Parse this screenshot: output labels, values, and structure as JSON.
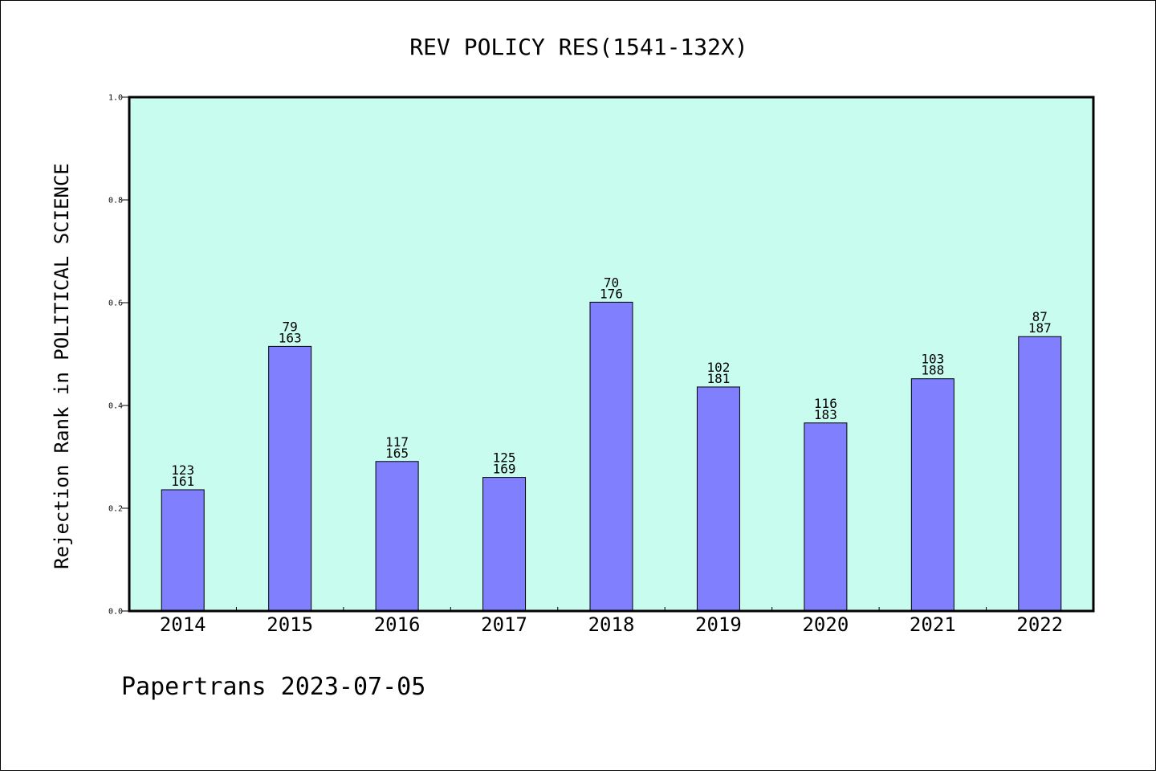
{
  "chart_data": {
    "type": "bar",
    "title": "REV POLICY RES(1541-132X)",
    "xlabel": "",
    "ylabel": "Rejection Rank in POLITICAL SCIENCE",
    "categories": [
      "2014",
      "2015",
      "2016",
      "2017",
      "2018",
      "2019",
      "2020",
      "2021",
      "2022"
    ],
    "values": [
      0.236,
      0.515,
      0.291,
      0.26,
      0.601,
      0.436,
      0.366,
      0.452,
      0.534
    ],
    "rank_labels": [
      "123",
      "79",
      "117",
      "125",
      "70",
      "102",
      "116",
      "103",
      "87"
    ],
    "total_labels": [
      "161",
      "163",
      "165",
      "169",
      "176",
      "181",
      "183",
      "188",
      "187"
    ],
    "ylim": [
      0,
      1.0
    ],
    "yticks": [
      "0.0",
      "0.2",
      "0.4",
      "0.6",
      "0.8",
      "1.0"
    ],
    "grid": false,
    "colors": {
      "plot_background": "#c8fcee",
      "bar_fill": "#8080ff",
      "bar_stroke": "#000000"
    }
  },
  "footer": {
    "text": "Papertrans 2023-07-05"
  }
}
